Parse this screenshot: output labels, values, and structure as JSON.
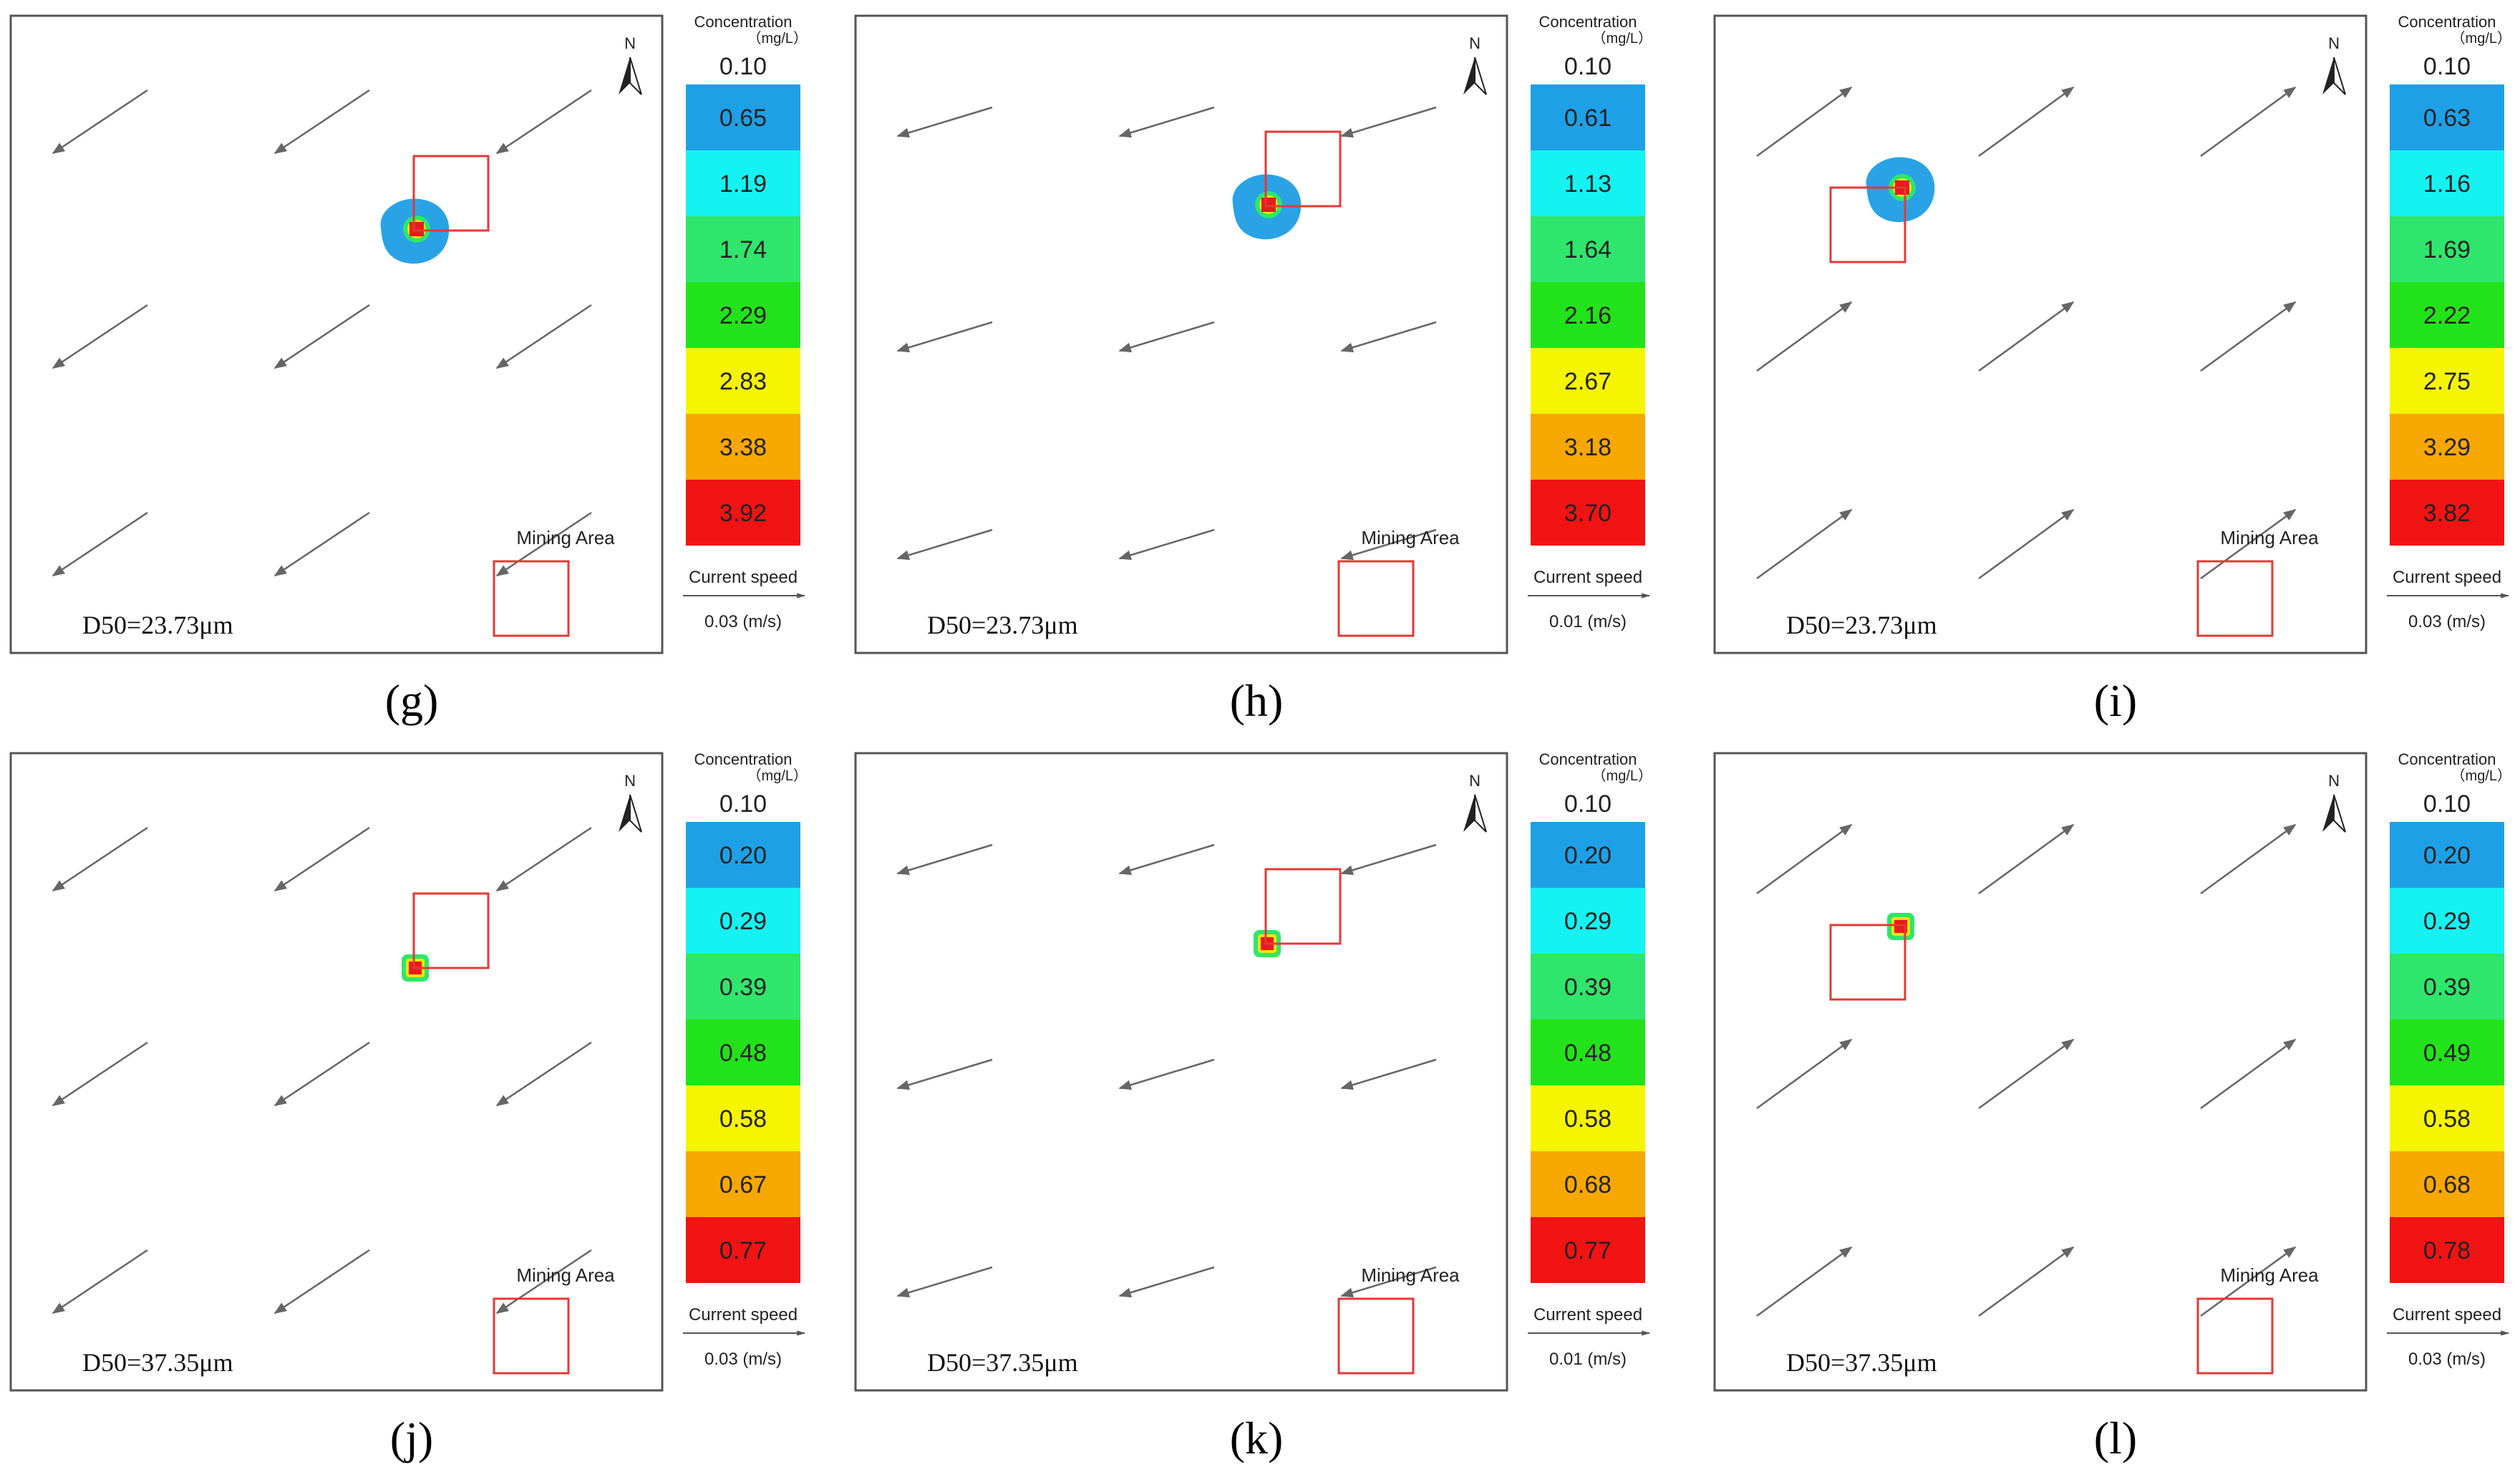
{
  "figure": {
    "colors": {
      "frame": "#555555",
      "arrow": "#666666",
      "box": "#e53935",
      "plume_outer": "#29a3e6",
      "plume_mid": "#2ee66b",
      "plume_inner": "#f2e600",
      "plume_core": "#e81b1b",
      "band": [
        "#1ea0e6",
        "#14f2f2",
        "#2ee66b",
        "#22e31a",
        "#f5f500",
        "#f7a800",
        "#f21313"
      ]
    },
    "panels": [
      {
        "label": "(g)",
        "legend_title": "Concentration",
        "legend_unit": "（mg/L）",
        "legend_min": "0.10",
        "levels": [
          "0.65",
          "1.19",
          "1.74",
          "2.29",
          "2.83",
          "3.38",
          "3.92"
        ],
        "speed_label": "Current speed",
        "speed_value": "0.03 (m/s)",
        "mining_label": "Mining Area",
        "d50": "D50=23.73μm",
        "north": "N",
        "flow": "sw",
        "plume_size": "large",
        "box_offset": "northeast"
      },
      {
        "label": "(h)",
        "legend_title": "Concentration",
        "legend_unit": "（mg/L）",
        "legend_min": "0.10",
        "levels": [
          "0.61",
          "1.13",
          "1.64",
          "2.16",
          "2.67",
          "3.18",
          "3.70"
        ],
        "speed_label": "Current speed",
        "speed_value": "0.01 (m/s)",
        "mining_label": "Mining Area",
        "d50": "D50=23.73μm",
        "north": "N",
        "flow": "w",
        "plume_size": "large",
        "box_offset": "northeast"
      },
      {
        "label": "(i)",
        "legend_title": "Concentration",
        "legend_unit": "（mg/L）",
        "legend_min": "0.10",
        "levels": [
          "0.63",
          "1.16",
          "1.69",
          "2.22",
          "2.75",
          "3.29",
          "3.82"
        ],
        "speed_label": "Current speed",
        "speed_value": "0.03 (m/s)",
        "mining_label": "Mining Area",
        "d50": "D50=23.73μm",
        "north": "N",
        "flow": "ne",
        "plume_size": "large",
        "box_offset": "southwest"
      },
      {
        "label": "(j)",
        "legend_title": "Concentration",
        "legend_unit": "（mg/L）",
        "legend_min": "0.10",
        "levels": [
          "0.20",
          "0.29",
          "0.39",
          "0.48",
          "0.58",
          "0.67",
          "0.77"
        ],
        "speed_label": "Current speed",
        "speed_value": "0.03 (m/s)",
        "mining_label": "Mining Area",
        "d50": "D50=37.35μm",
        "north": "N",
        "flow": "sw",
        "plume_size": "small",
        "box_offset": "northeast"
      },
      {
        "label": "(k)",
        "legend_title": "Concentration",
        "legend_unit": "（mg/L）",
        "legend_min": "0.10",
        "levels": [
          "0.20",
          "0.29",
          "0.39",
          "0.48",
          "0.58",
          "0.68",
          "0.77"
        ],
        "speed_label": "Current speed",
        "speed_value": "0.01 (m/s)",
        "mining_label": "Mining Area",
        "d50": "D50=37.35μm",
        "north": "N",
        "flow": "w",
        "plume_size": "small",
        "box_offset": "northeast"
      },
      {
        "label": "(l)",
        "legend_title": "Concentration",
        "legend_unit": "（mg/L）",
        "legend_min": "0.10",
        "levels": [
          "0.20",
          "0.29",
          "0.39",
          "0.49",
          "0.58",
          "0.68",
          "0.78"
        ],
        "speed_label": "Current speed",
        "speed_value": "0.03 (m/s)",
        "mining_label": "Mining Area",
        "d50": "D50=37.35μm",
        "north": "N",
        "flow": "ne",
        "plume_size": "small",
        "box_offset": "southwest"
      }
    ]
  }
}
